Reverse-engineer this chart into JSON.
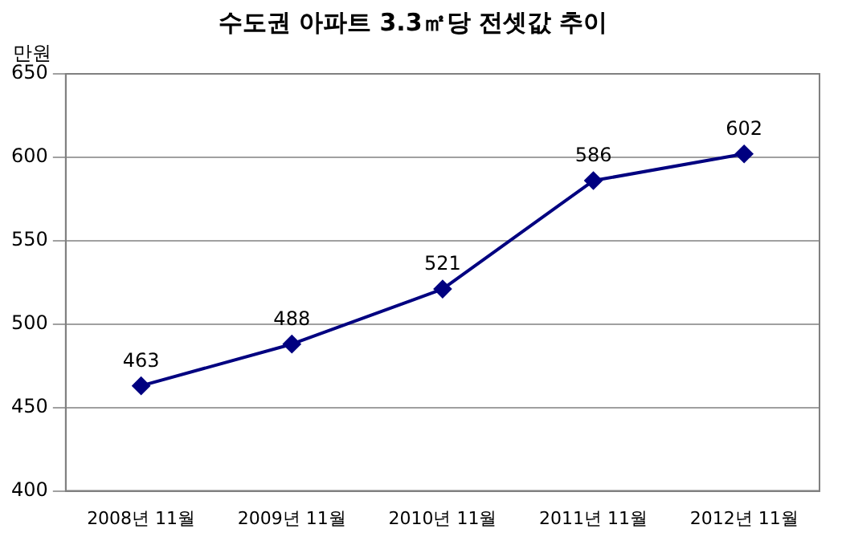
{
  "chart_data": {
    "type": "line",
    "title": "수도권 아파트 3.3㎡당 전셋값 추이",
    "ylabel": "만원",
    "categories": [
      "2008년 11월",
      "2009년 11월",
      "2010년 11월",
      "2011년 11월",
      "2012년 11월"
    ],
    "series": [
      {
        "color": "#000080",
        "values": [
          463,
          488,
          521,
          586,
          602
        ]
      }
    ],
    "ylim": [
      400,
      650
    ],
    "yticks": [
      400,
      450,
      500,
      550,
      600,
      650
    ],
    "grid": "y",
    "legend": false,
    "marker": "diamond",
    "line_style": "solid",
    "data_labels": true
  }
}
